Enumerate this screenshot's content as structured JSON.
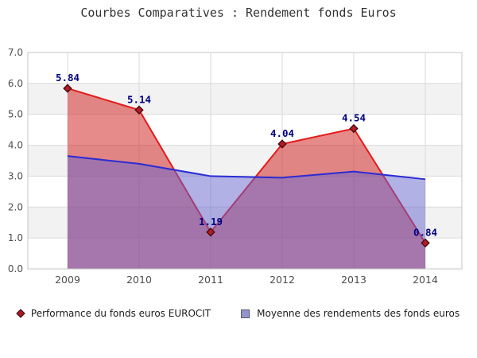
{
  "title": "Courbes Comparatives : Rendement fonds Euros",
  "colors": {
    "title_text": "#333333",
    "band_gray": "#f2f2f2",
    "band_white": "#ffffff",
    "gridline": "#dadada",
    "frame": "#c6c6c6",
    "tick_text": "#4d4d4d",
    "red_line": "#e31b1b",
    "red_fill": "rgba(212,42,42,0.55)",
    "marker_fill": "#ae1c26",
    "marker_stroke": "#45080d",
    "point_label": "#00007e",
    "blue_line": "#2b2bd4",
    "blue_fill": "rgba(100,100,205,0.5)"
  },
  "chart_data": {
    "type": "area",
    "title": "Courbes Comparatives : Rendement fonds Euros",
    "categories": [
      "2009",
      "2010",
      "2011",
      "2012",
      "2013",
      "2014"
    ],
    "series": [
      {
        "name": "Performance du fonds euros EUROCIT",
        "values": [
          5.84,
          5.14,
          1.19,
          4.04,
          4.54,
          0.84
        ],
        "point_labels": [
          "5.84",
          "5.14",
          "1.19",
          "4.04",
          "4.54",
          "0.84"
        ],
        "marker": "diamond",
        "labels_shown": true
      },
      {
        "name": "Moyenne des rendements des fonds euros",
        "values": [
          3.65,
          3.4,
          3.0,
          2.95,
          3.15,
          2.9
        ],
        "marker": "none",
        "labels_shown": false
      }
    ],
    "ylim": [
      0,
      7
    ],
    "ytick_step": 1.0,
    "ytick_labels": [
      "0.0",
      "1.0",
      "2.0",
      "3.0",
      "4.0",
      "5.0",
      "6.0",
      "7.0"
    ],
    "grid": true,
    "background_bands": "alternating 1.0-unit horizontal stripes, white from 7.0, gray on 6-5 / 4-3 / 2-1",
    "legend_position": "bottom"
  },
  "legend": {
    "items": [
      {
        "icon": "red-diamond",
        "label": "Performance du fonds euros EUROCIT"
      },
      {
        "icon": "purple-square",
        "label": "Moyenne des rendements des fonds euros"
      }
    ]
  }
}
